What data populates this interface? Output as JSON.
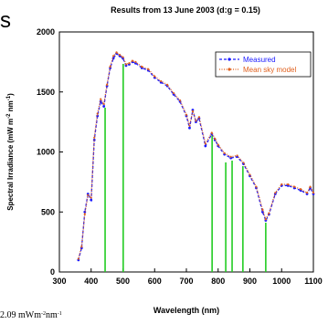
{
  "chart_data": {
    "type": "line",
    "title": "Results from 13 June 2003 (d:g = 0.15)",
    "x_label": "Wavelength (nm)",
    "y_label_parts": [
      "Spectral Irradiance (mW m",
      "-2",
      " nm",
      "-1",
      ")"
    ],
    "fragments": {
      "top_left": "s",
      "bottom_left_parts": [
        "2.09 mWm",
        "-2",
        "nm",
        "-1"
      ]
    },
    "x": [
      360,
      370,
      380,
      390,
      400,
      410,
      420,
      430,
      440,
      450,
      460,
      470,
      480,
      490,
      500,
      510,
      520,
      530,
      540,
      560,
      580,
      600,
      620,
      640,
      660,
      680,
      700,
      710,
      720,
      730,
      740,
      760,
      780,
      790,
      800,
      820,
      840,
      860,
      880,
      900,
      920,
      940,
      950,
      960,
      980,
      1000,
      1020,
      1040,
      1060,
      1080,
      1090,
      1100
    ],
    "series": [
      {
        "name": "Measured",
        "color": "#1a1aff",
        "values": [
          100,
          200,
          500,
          650,
          600,
          1100,
          1300,
          1420,
          1380,
          1550,
          1700,
          1780,
          1820,
          1800,
          1780,
          1720,
          1730,
          1750,
          1740,
          1700,
          1680,
          1620,
          1580,
          1550,
          1480,
          1420,
          1300,
          1200,
          1350,
          1250,
          1280,
          1050,
          1150,
          1100,
          1050,
          980,
          950,
          960,
          900,
          800,
          700,
          500,
          430,
          480,
          650,
          720,
          720,
          700,
          680,
          650,
          700,
          650
        ]
      },
      {
        "name": "Mean sky model",
        "color": "#e0601e",
        "values": [
          110,
          210,
          480,
          640,
          620,
          1120,
          1320,
          1440,
          1400,
          1560,
          1710,
          1800,
          1830,
          1810,
          1790,
          1730,
          1740,
          1760,
          1750,
          1710,
          1690,
          1630,
          1590,
          1560,
          1490,
          1430,
          1310,
          1220,
          1340,
          1260,
          1290,
          1070,
          1160,
          1110,
          1060,
          990,
          960,
          970,
          910,
          810,
          710,
          520,
          440,
          490,
          660,
          730,
          730,
          710,
          690,
          660,
          710,
          660
        ]
      }
    ],
    "markers": {
      "color": "#22cc22",
      "x": [
        444,
        501,
        781,
        824,
        844,
        878,
        950
      ],
      "values": [
        1369,
        1734,
        1141,
        913,
        928,
        882,
        411
      ]
    },
    "legend_position": "upper right",
    "xlim": [
      300,
      1100
    ],
    "xticks": [
      300,
      400,
      500,
      600,
      700,
      800,
      900,
      1000,
      1100
    ],
    "ylim": [
      0,
      2000
    ],
    "yticks": [
      0,
      500,
      1000,
      1500,
      2000
    ]
  }
}
